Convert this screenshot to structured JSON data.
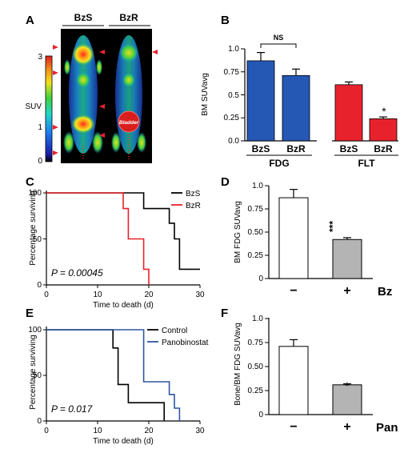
{
  "panels": {
    "A": {
      "letter": "A",
      "group_labels": [
        "BzS",
        "BzR"
      ],
      "colorbar_label": "SUV",
      "colorbar_ticks": [
        "3",
        "1",
        "0"
      ],
      "organ_label": "Bladder"
    },
    "B": {
      "letter": "B",
      "ylabel": "BM SUVavg",
      "ns_label": "NS",
      "sig_label": "*",
      "y_ticks": [
        "0.0",
        "0.25",
        "0.5",
        "0.75",
        "1.0"
      ]
    },
    "C": {
      "letter": "C",
      "ylabel": "Percentage surviving",
      "xlabel": "Time to death (d)",
      "pvalue": "P = 0.00045",
      "y_ticks": [
        "0",
        "50",
        "100"
      ],
      "x_ticks": [
        "0",
        "10",
        "20",
        "30"
      ]
    },
    "D": {
      "letter": "D",
      "ylabel": "BM FDG SUVavg",
      "factor_label": "Bz",
      "sig_label": "***",
      "y_ticks": [
        "0",
        "0.25",
        "0.50",
        "0.75",
        "1.0"
      ]
    },
    "E": {
      "letter": "E",
      "ylabel": "Percentage surviving",
      "xlabel": "Time to death (d)",
      "pvalue": "P = 0.017",
      "y_ticks": [
        "0",
        "50",
        "100"
      ],
      "x_ticks": [
        "0",
        "10",
        "20",
        "30"
      ]
    },
    "F": {
      "letter": "F",
      "ylabel": "Bone/BM FDG SUVavg",
      "factor_label": "Pan",
      "sig_label": "*",
      "y_ticks": [
        "0",
        "0.25",
        "0.50",
        "0.75",
        "1.0"
      ]
    }
  },
  "chart_data": [
    {
      "panel": "B",
      "type": "bar",
      "groups": [
        {
          "name": "FDG",
          "categories": [
            "BzS",
            "BzR"
          ],
          "values": [
            0.87,
            0.71
          ],
          "errors": [
            0.09,
            0.07
          ],
          "color": "#2557b5"
        },
        {
          "name": "FLT",
          "categories": [
            "BzS",
            "BzR"
          ],
          "values": [
            0.61,
            0.24
          ],
          "errors": [
            0.03,
            0.02
          ],
          "color": "#e8222c"
        }
      ],
      "ylabel": "BM SUVavg",
      "ylim": [
        0,
        1.0
      ]
    },
    {
      "panel": "C",
      "type": "line",
      "step": true,
      "xlim": [
        0,
        30
      ],
      "ylim": [
        0,
        100
      ],
      "xlabel": "Time to death (d)",
      "ylabel": "Percentage surviving",
      "series": [
        {
          "name": "BzS",
          "color": "#000000",
          "x": [
            0,
            19,
            19,
            24,
            24,
            25,
            25,
            26,
            26,
            30
          ],
          "y": [
            100,
            100,
            83,
            83,
            67,
            67,
            50,
            50,
            17,
            17
          ]
        },
        {
          "name": "BzR",
          "color": "#e8222c",
          "x": [
            0,
            15,
            15,
            16,
            16,
            19,
            19,
            20,
            20
          ],
          "y": [
            100,
            100,
            83,
            83,
            50,
            50,
            17,
            17,
            0
          ]
        }
      ]
    },
    {
      "panel": "D",
      "type": "bar",
      "categories": [
        "−",
        "+"
      ],
      "values": [
        0.87,
        0.42
      ],
      "errors": [
        0.09,
        0.02
      ],
      "colors": [
        "#ffffff",
        "#b4b4b4"
      ],
      "ylabel": "BM FDG SUVavg",
      "ylim": [
        0,
        1.0
      ]
    },
    {
      "panel": "E",
      "type": "line",
      "step": true,
      "xlim": [
        0,
        30
      ],
      "ylim": [
        0,
        100
      ],
      "xlabel": "Time to death (d)",
      "ylabel": "Percentage surviving",
      "series": [
        {
          "name": "Control",
          "color": "#000000",
          "x": [
            0,
            13,
            13,
            14,
            14,
            16,
            16,
            23,
            23
          ],
          "y": [
            100,
            100,
            80,
            80,
            40,
            40,
            20,
            20,
            0
          ]
        },
        {
          "name": "Panobinostat",
          "color": "#2f55a4",
          "x": [
            0,
            19,
            19,
            24,
            24,
            25,
            25,
            26,
            26
          ],
          "y": [
            100,
            100,
            43,
            43,
            29,
            29,
            14,
            14,
            0
          ]
        }
      ]
    },
    {
      "panel": "F",
      "type": "bar",
      "categories": [
        "−",
        "+"
      ],
      "values": [
        0.71,
        0.31
      ],
      "errors": [
        0.07,
        0.01
      ],
      "colors": [
        "#ffffff",
        "#b4b4b4"
      ],
      "ylabel": "Bone/BM FDG SUVavg",
      "ylim": [
        0,
        1.0
      ]
    }
  ]
}
